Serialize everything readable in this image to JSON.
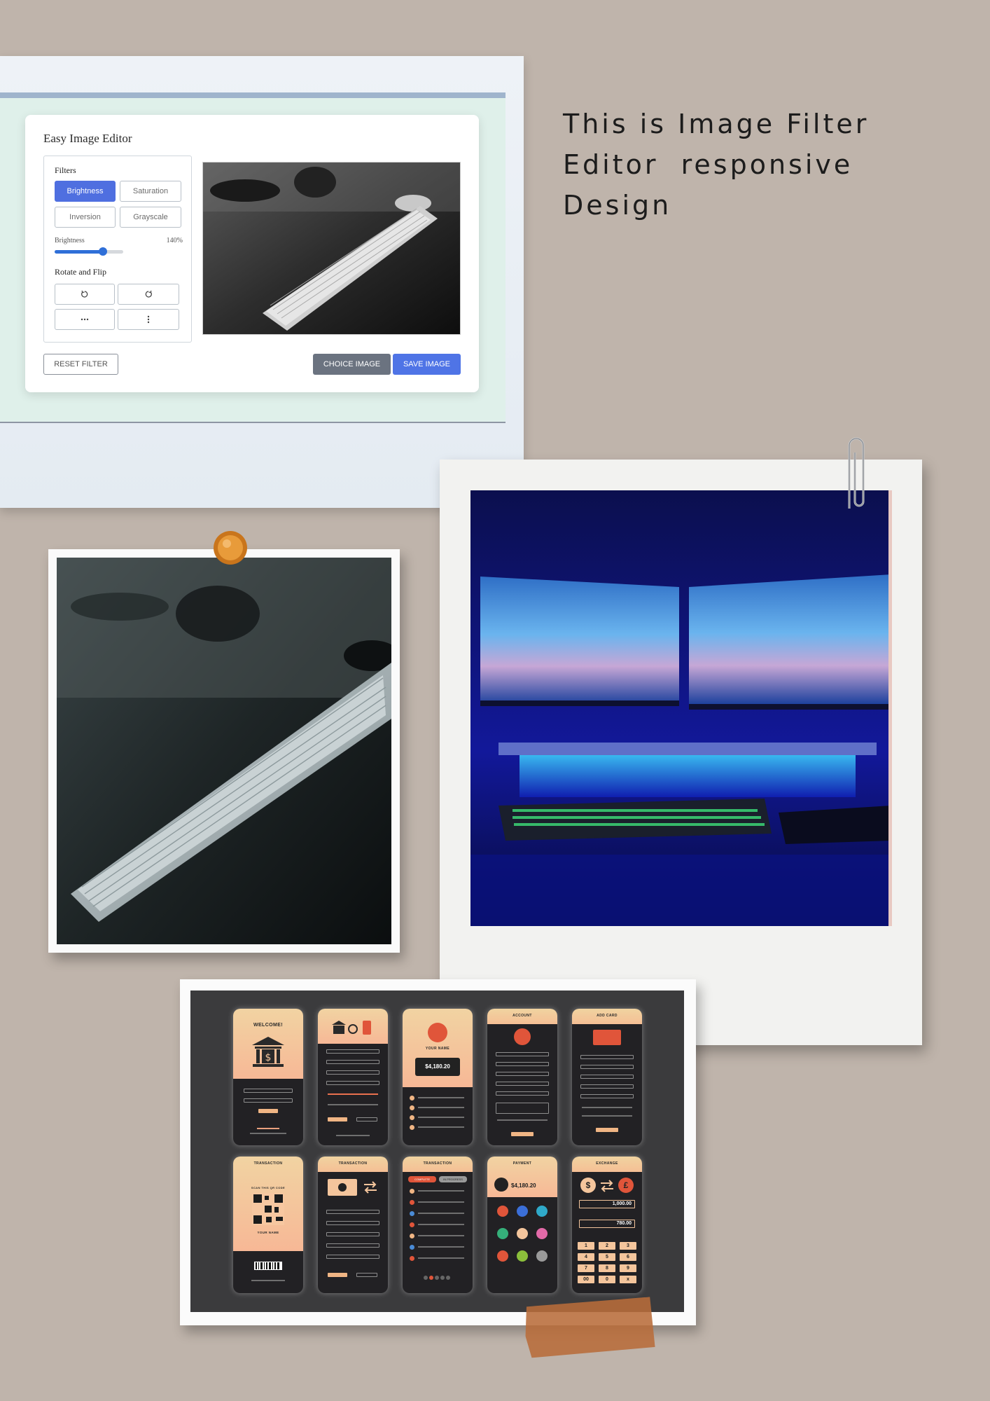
{
  "headline": {
    "line1": "This is Image Filter",
    "line2": "Editor  responsive",
    "line3": "Design"
  },
  "editor": {
    "title": "Easy Image Editor",
    "filters_heading": "Filters",
    "filter_buttons": [
      "Brightness",
      "Saturation",
      "Inversion",
      "Grayscale"
    ],
    "active_filter": "Brightness",
    "slider_label": "Brightness",
    "slider_value_text": "140%",
    "slider_fraction": 0.7,
    "rotate_heading": "Rotate and Flip",
    "rotate_icons": [
      "rotate-left-icon",
      "rotate-right-icon",
      "flip-horizontal-icon",
      "flip-vertical-icon"
    ],
    "reset_label": "RESET FILTER",
    "choice_label": "CHOICE IMAGE",
    "save_label": "SAVE IMAGE",
    "colors": {
      "primary": "#4f6fe0",
      "secondary": "#6b7380"
    }
  },
  "mobile": {
    "screens": [
      {
        "title": "WELCOME!"
      },
      {
        "title": ""
      },
      {
        "title": "YOUR NAME",
        "balance": "$4,180.20"
      },
      {
        "title": "ACCOUNT"
      },
      {
        "title": "ADD CARD"
      },
      {
        "title": "TRANSACTION",
        "subtitle": "SCAN THIS QR CODE",
        "name": "YOUR NAME"
      },
      {
        "title": "TRANSACTION"
      },
      {
        "title": "TRANSACTION",
        "tab1": "COMPLETE",
        "tab2": "IN PROGRESS"
      },
      {
        "title": "PAYMENT",
        "balance": "$4,180.20"
      },
      {
        "title": "EXCHANGE",
        "amount1": "1,000.00",
        "amount2": "780.00",
        "currency1": "$",
        "currency2": "£",
        "keys": [
          "1",
          "2",
          "3",
          "4",
          "5",
          "6",
          "7",
          "8",
          "9",
          "00",
          "0",
          "x"
        ]
      }
    ],
    "accent": "#f0b584"
  }
}
